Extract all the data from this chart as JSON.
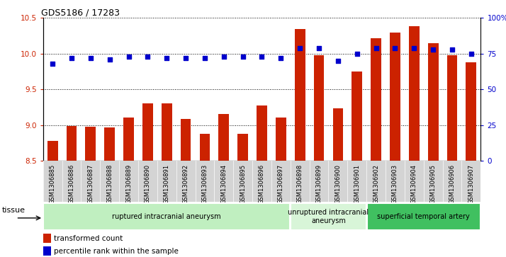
{
  "title": "GDS5186 / 17283",
  "samples": [
    "GSM1306885",
    "GSM1306886",
    "GSM1306887",
    "GSM1306888",
    "GSM1306889",
    "GSM1306890",
    "GSM1306891",
    "GSM1306892",
    "GSM1306893",
    "GSM1306894",
    "GSM1306895",
    "GSM1306896",
    "GSM1306897",
    "GSM1306898",
    "GSM1306899",
    "GSM1306900",
    "GSM1306901",
    "GSM1306902",
    "GSM1306903",
    "GSM1306904",
    "GSM1306905",
    "GSM1306906",
    "GSM1306907"
  ],
  "bar_values": [
    8.78,
    8.99,
    8.98,
    8.97,
    9.1,
    9.3,
    9.3,
    9.08,
    8.88,
    9.15,
    8.88,
    9.27,
    9.1,
    10.35,
    9.98,
    9.23,
    9.75,
    10.22,
    10.3,
    10.38,
    10.15,
    9.98,
    9.88
  ],
  "dot_values": [
    68,
    72,
    72,
    71,
    73,
    73,
    72,
    72,
    72,
    73,
    73,
    73,
    72,
    79,
    79,
    70,
    75,
    79,
    79,
    79,
    78,
    78,
    75
  ],
  "groups": [
    {
      "label": "ruptured intracranial aneurysm",
      "start": 0,
      "end": 12,
      "color": "#c0efc0"
    },
    {
      "label": "unruptured intracranial\naneurysm",
      "start": 13,
      "end": 16,
      "color": "#d8f5d8"
    },
    {
      "label": "superficial temporal artery",
      "start": 17,
      "end": 22,
      "color": "#40c060"
    }
  ],
  "ylim_left": [
    8.5,
    10.5
  ],
  "ylim_right": [
    0,
    100
  ],
  "yticks_left": [
    8.5,
    9.0,
    9.5,
    10.0,
    10.5
  ],
  "yticks_right": [
    0,
    25,
    50,
    75,
    100
  ],
  "bar_color": "#cc2200",
  "dot_color": "#0000cc",
  "label_bg": "#d4d4d4",
  "tissue_label": "tissue",
  "legend_bar_label": "transformed count",
  "legend_dot_label": "percentile rank within the sample"
}
